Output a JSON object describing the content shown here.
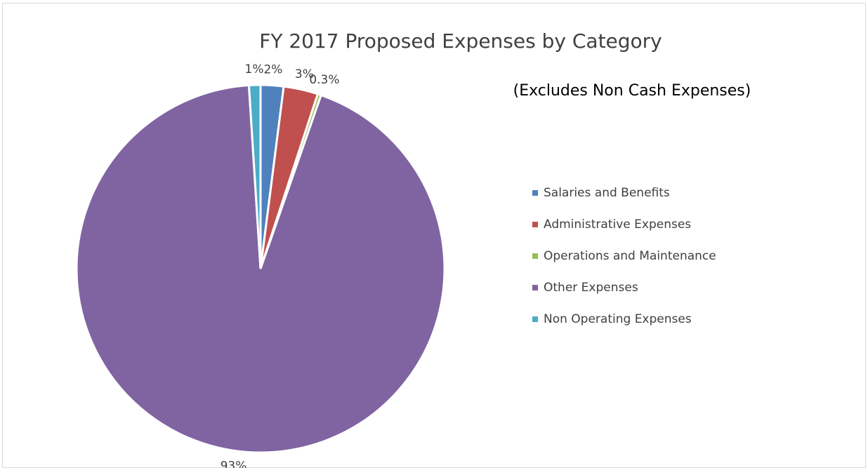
{
  "chart_data": {
    "type": "pie",
    "title": "FY 2017 Proposed Expenses by Category",
    "subtitle": "(Excludes Non Cash Expenses)",
    "categories": [
      "Salaries and Benefits",
      "Administrative Expenses",
      "Operations and Maintenance",
      "Other Expenses",
      "Non Operating Expenses"
    ],
    "values": [
      2,
      3,
      0.3,
      93,
      1
    ],
    "value_labels": [
      "2%",
      "3%",
      "0.3%",
      "93%",
      "1%"
    ],
    "colors": [
      "#4f81bd",
      "#c0504d",
      "#9bbb59",
      "#8064a2",
      "#4bacc6"
    ],
    "legend": "right"
  }
}
